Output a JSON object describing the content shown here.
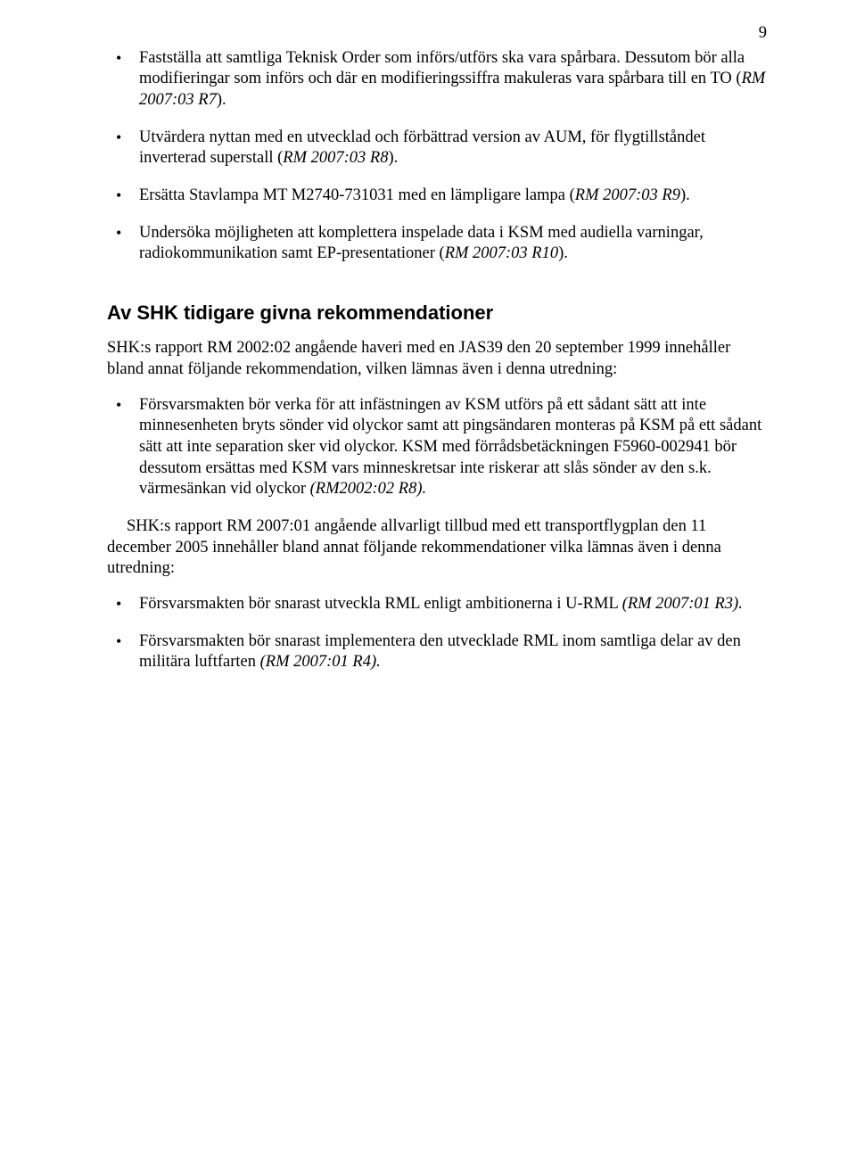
{
  "page_number": "9",
  "top_bullets": [
    {
      "text_before": "Fastställa att samtliga Teknisk Order som införs/utförs ska vara spårbara. Dessutom bör alla modifieringar som införs och där en modifieringssiffra makuleras vara spårbara till en TO (",
      "ref": "RM 2007:03 R7",
      "text_after": ")."
    },
    {
      "text_before": "Utvärdera nyttan med en utvecklad och förbättrad version av AUM, för flygtillståndet inverterad superstall (",
      "ref": "RM 2007:03 R8",
      "text_after": ")."
    },
    {
      "text_before": "Ersätta Stavlampa MT M2740-731031 med en lämpligare lampa (",
      "ref": "RM 2007:03 R9",
      "text_after": ")."
    },
    {
      "text_before": "Undersöka möjligheten att komplettera inspelade data i KSM med audiella varningar, radiokommunikation samt EP-presentationer (",
      "ref": "RM 2007:03 R10",
      "text_after": ")."
    }
  ],
  "section_heading": "Av SHK tidigare givna rekommendationer",
  "intro_para": "SHK:s rapport RM 2002:02 angående haveri med en JAS39 den 20 september 1999 innehåller bland annat följande rekommendation, vilken lämnas även i denna utredning:",
  "mid_bullets": [
    {
      "text_before": "Försvarsmakten bör verka för att infästningen av KSM utförs på ett sådant sätt att inte minnesenheten bryts sönder vid olyckor samt att pingsändaren monteras på KSM på ett sådant sätt att inte separation sker vid olyckor. KSM med förrådsbetäckningen F5960-002941 bör dessutom ersättas med KSM vars minneskretsar inte riskerar att slås sönder av den s.k. värmesänkan vid olyckor ",
      "ref": "(RM2002:02 R8).",
      "text_after": ""
    }
  ],
  "second_para": "SHK:s rapport RM 2007:01 angående allvarligt tillbud med ett transportflygplan den 11 december 2005 innehåller bland annat följande rekommendationer vilka lämnas även i denna utredning:",
  "end_bullets": [
    {
      "text_before": "Försvarsmakten bör snarast utveckla RML enligt ambitionerna i U-RML ",
      "ref": "(RM 2007:01 R3).",
      "text_after": ""
    },
    {
      "text_before": "Försvarsmakten bör snarast implementera den utvecklade RML inom samtliga delar av den militära luftfarten ",
      "ref": "(RM 2007:01 R4).",
      "text_after": ""
    }
  ]
}
